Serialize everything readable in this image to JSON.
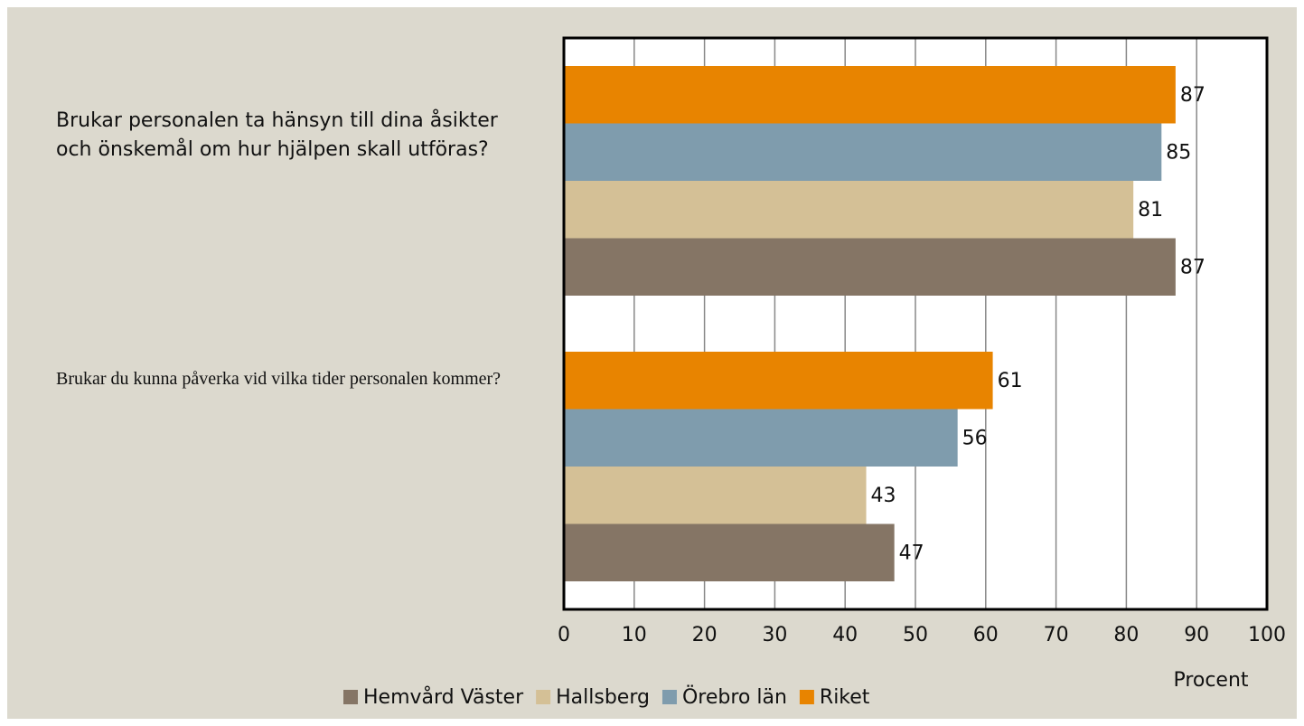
{
  "chart_data": {
    "type": "barh",
    "categories": [
      "Brukar personalen ta hänsyn till dina åsikter och önskemål om hur hjälpen skall utföras?",
      "Brukar du kunna påverka vid vilka tider personalen kommer?"
    ],
    "series": [
      {
        "name": "Hemvård Väster",
        "color": "#857565",
        "values": [
          87,
          47
        ]
      },
      {
        "name": "Hallsberg",
        "color": "#d4c096",
        "values": [
          81,
          43
        ]
      },
      {
        "name": "Örebro län",
        "color": "#7f9cad",
        "values": [
          85,
          56
        ]
      },
      {
        "name": "Riket",
        "color": "#e88400",
        "values": [
          87,
          61
        ]
      }
    ],
    "xlabel": "Procent",
    "xlim": [
      0,
      100
    ],
    "xticks": [
      0,
      10,
      20,
      30,
      40,
      50,
      60,
      70,
      80,
      90,
      100
    ],
    "grid": true,
    "legend": "bottom"
  }
}
